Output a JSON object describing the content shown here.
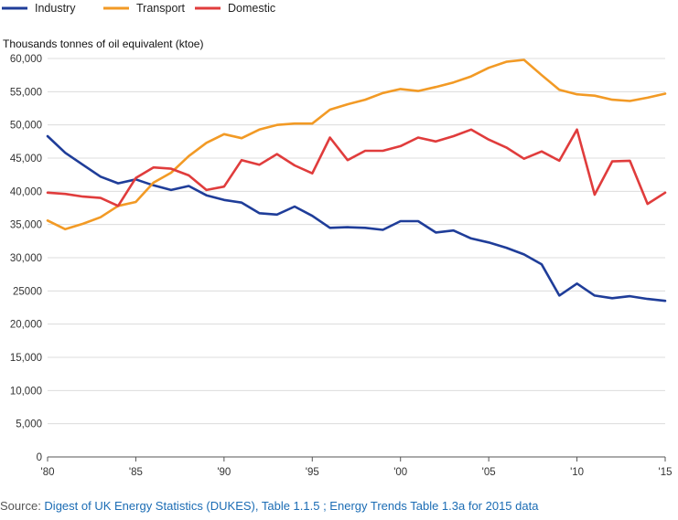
{
  "chart_data": {
    "type": "line",
    "title": "",
    "ylabel": "Thousands tonnes of oil equivalent (ktoe)",
    "xlabel": "",
    "ylim": [
      0,
      60000
    ],
    "xlim": [
      1980,
      2015
    ],
    "y_ticks": [
      0,
      5000,
      10000,
      15000,
      20000,
      25000,
      30000,
      35000,
      40000,
      45000,
      50000,
      55000,
      60000
    ],
    "y_tick_labels": [
      "0",
      "5,000",
      "10,000",
      "15,000",
      "20,000",
      "25000",
      "30,000",
      "35,000",
      "40,000",
      "45,000",
      "50,000",
      "55,000",
      "60,000"
    ],
    "x_ticks": [
      1980,
      1985,
      1990,
      1995,
      2000,
      2005,
      2010,
      2015
    ],
    "x_tick_labels": [
      "'80",
      "'85",
      "'90",
      "'95",
      "'00",
      "'05",
      "'10",
      "'15"
    ],
    "grid": true,
    "legend_position": "top-left",
    "x": [
      1980,
      1981,
      1982,
      1983,
      1984,
      1985,
      1986,
      1987,
      1988,
      1989,
      1990,
      1991,
      1992,
      1993,
      1994,
      1995,
      1996,
      1997,
      1998,
      1999,
      2000,
      2001,
      2002,
      2003,
      2004,
      2005,
      2006,
      2007,
      2008,
      2009,
      2010,
      2011,
      2012,
      2013,
      2014,
      2015
    ],
    "series": [
      {
        "name": "Industry",
        "color": "#1f3d99",
        "values": [
          48300,
          45800,
          44000,
          42200,
          41200,
          41800,
          40900,
          40200,
          40800,
          39400,
          38700,
          38300,
          36700,
          36500,
          37700,
          36300,
          34500,
          34600,
          34500,
          34200,
          35500,
          35500,
          33800,
          34100,
          32900,
          32300,
          31500,
          30500,
          29000,
          24300,
          26100,
          24300,
          23900,
          24200,
          23800,
          23500
        ]
      },
      {
        "name": "Transport",
        "color": "#f29a25",
        "values": [
          35600,
          34300,
          35100,
          36100,
          37800,
          38400,
          41300,
          42800,
          45300,
          47300,
          48600,
          48000,
          49300,
          50000,
          50200,
          50200,
          52300,
          53100,
          53800,
          54800,
          55400,
          55100,
          55700,
          56400,
          57300,
          58600,
          59500,
          59800,
          57500,
          55300,
          54600,
          54400,
          53800,
          53600,
          54100,
          54700
        ]
      },
      {
        "name": "Domestic",
        "color": "#e03c3c",
        "values": [
          39800,
          39600,
          39200,
          39000,
          37800,
          42000,
          43600,
          43400,
          42400,
          40200,
          40700,
          44700,
          44000,
          45600,
          43900,
          42700,
          48100,
          44700,
          46100,
          46100,
          46800,
          48100,
          47500,
          48300,
          49300,
          47800,
          46600,
          44900,
          46000,
          44600,
          49300,
          39500,
          44500,
          44600,
          38100,
          39800
        ]
      }
    ]
  },
  "source": {
    "prefix": "Source: ",
    "link_text": "Digest of UK Energy Statistics (DUKES), Table 1.1.5 ; Energy Trends Table 1.3a for 2015 data"
  }
}
